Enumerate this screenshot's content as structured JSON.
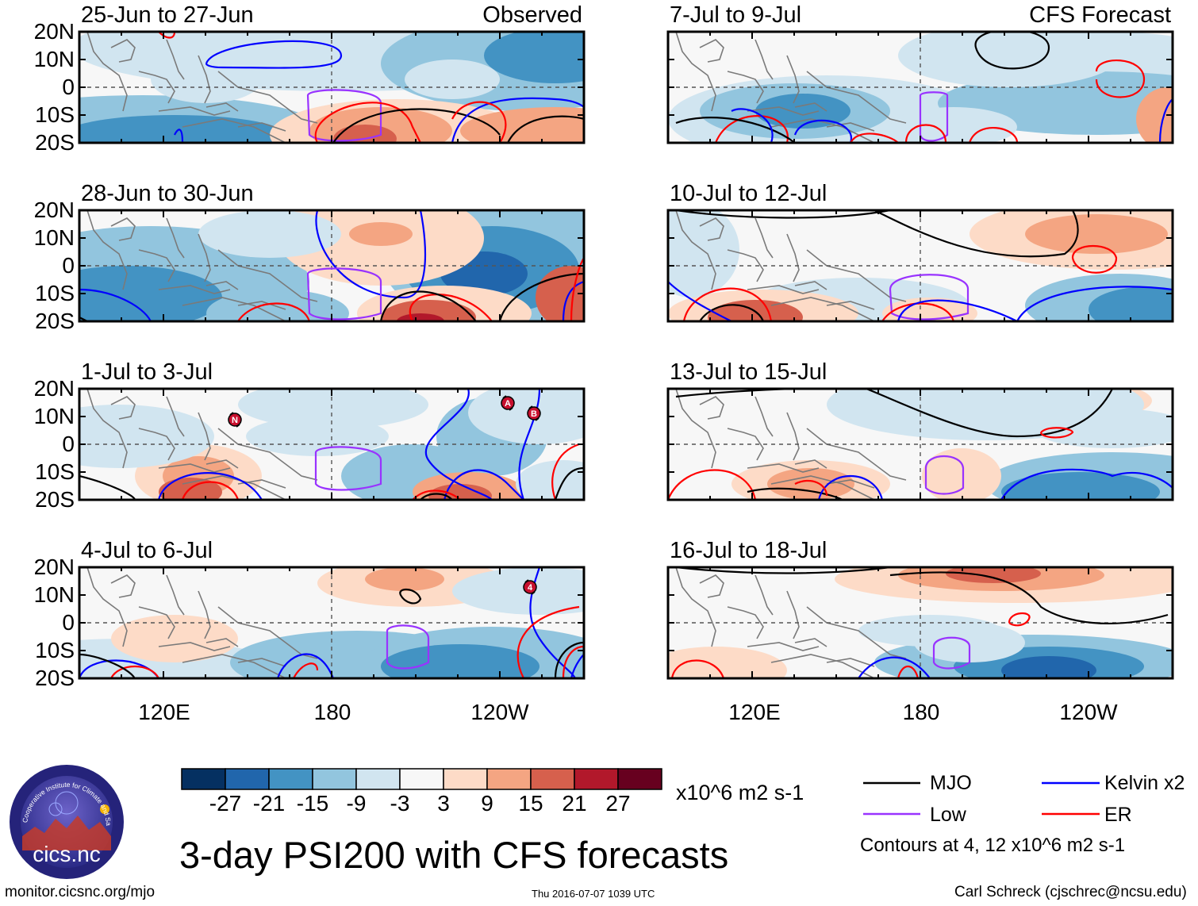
{
  "panels": [
    {
      "title": "25-Jun to 27-Jun",
      "tag": "Observed"
    },
    {
      "title": "7-Jul to 9-Jul",
      "tag": "CFS Forecast"
    },
    {
      "title": "28-Jun to 30-Jun",
      "tag": ""
    },
    {
      "title": "10-Jul to 12-Jul",
      "tag": ""
    },
    {
      "title": "1-Jul to 3-Jul",
      "tag": ""
    },
    {
      "title": "13-Jul to 15-Jul",
      "tag": ""
    },
    {
      "title": "4-Jul to 6-Jul",
      "tag": ""
    },
    {
      "title": "16-Jul to 18-Jul",
      "tag": ""
    }
  ],
  "lat_labels": [
    "20N",
    "10N",
    "0",
    "10S",
    "20S"
  ],
  "lon_labels": [
    "120E",
    "180",
    "120W"
  ],
  "storm_markers": [
    {
      "panel": 4,
      "label": "N"
    },
    {
      "panel": 4,
      "label": "A"
    },
    {
      "panel": 4,
      "label": "B"
    },
    {
      "panel": 6,
      "label": "4"
    }
  ],
  "colorbar": {
    "tick_labels": [
      "-27",
      "-21",
      "-15",
      "-9",
      "-3",
      "3",
      "9",
      "15",
      "21",
      "27"
    ],
    "colors": [
      "#053061",
      "#2166ac",
      "#4393c3",
      "#92c5de",
      "#d1e5f0",
      "#f7f7f7",
      "#fddbc7",
      "#f4a582",
      "#d6604d",
      "#b2182b",
      "#67001f"
    ],
    "units": "x10^6 m2 s-1"
  },
  "legend": {
    "items": [
      {
        "label": "MJO",
        "color": "#000000"
      },
      {
        "label": "Kelvin x2",
        "color": "#0000ff"
      },
      {
        "label": "Low",
        "color": "#9933ff"
      },
      {
        "label": "ER",
        "color": "#ff0000"
      }
    ],
    "note": "Contours at 4, 12 x10^6 m2 s-1"
  },
  "logo": {
    "text": "cics.nc",
    "ring_text": "Cooperative Institute for Climate and Satellites"
  },
  "main_title": "3-day PSI200 with CFS forecasts",
  "footer": {
    "left": "monitor.cicsnc.org/mjo",
    "center": "Thu 2016-07-07 1039 UTC",
    "right": "Carl Schreck (cjschrec@ncsu.edu)"
  }
}
